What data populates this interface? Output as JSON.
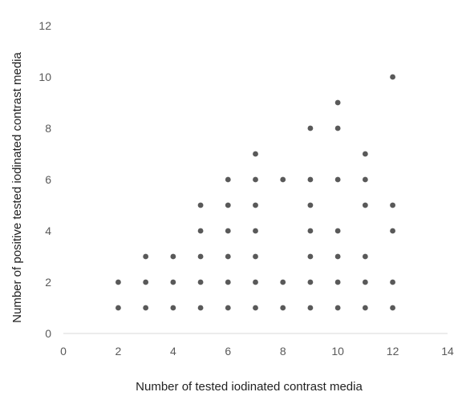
{
  "chart_data": {
    "type": "scatter",
    "title": "",
    "xlabel": "Number of tested iodinated contrast media",
    "ylabel": "Number of positive tested iodinated contrast media",
    "xlim": [
      0,
      14
    ],
    "ylim": [
      0,
      12
    ],
    "x_ticks": [
      0,
      2,
      4,
      6,
      8,
      10,
      12,
      14
    ],
    "y_ticks": [
      0,
      2,
      4,
      6,
      8,
      10,
      12
    ],
    "grid": false,
    "legend": "none",
    "marker_color": "#595959",
    "points": [
      [
        2,
        1
      ],
      [
        2,
        2
      ],
      [
        3,
        1
      ],
      [
        3,
        2
      ],
      [
        3,
        3
      ],
      [
        4,
        1
      ],
      [
        4,
        2
      ],
      [
        4,
        3
      ],
      [
        5,
        1
      ],
      [
        5,
        2
      ],
      [
        5,
        3
      ],
      [
        5,
        4
      ],
      [
        5,
        5
      ],
      [
        6,
        1
      ],
      [
        6,
        2
      ],
      [
        6,
        3
      ],
      [
        6,
        4
      ],
      [
        6,
        5
      ],
      [
        6,
        6
      ],
      [
        7,
        1
      ],
      [
        7,
        2
      ],
      [
        7,
        3
      ],
      [
        7,
        4
      ],
      [
        7,
        5
      ],
      [
        7,
        6
      ],
      [
        7,
        7
      ],
      [
        8,
        1
      ],
      [
        8,
        2
      ],
      [
        8,
        6
      ],
      [
        9,
        1
      ],
      [
        9,
        2
      ],
      [
        9,
        3
      ],
      [
        9,
        4
      ],
      [
        9,
        5
      ],
      [
        9,
        6
      ],
      [
        9,
        8
      ],
      [
        10,
        1
      ],
      [
        10,
        2
      ],
      [
        10,
        3
      ],
      [
        10,
        4
      ],
      [
        10,
        6
      ],
      [
        10,
        8
      ],
      [
        10,
        9
      ],
      [
        11,
        1
      ],
      [
        11,
        2
      ],
      [
        11,
        3
      ],
      [
        11,
        5
      ],
      [
        11,
        6
      ],
      [
        11,
        7
      ],
      [
        12,
        1
      ],
      [
        12,
        2
      ],
      [
        12,
        4
      ],
      [
        12,
        5
      ],
      [
        12,
        10
      ]
    ]
  }
}
